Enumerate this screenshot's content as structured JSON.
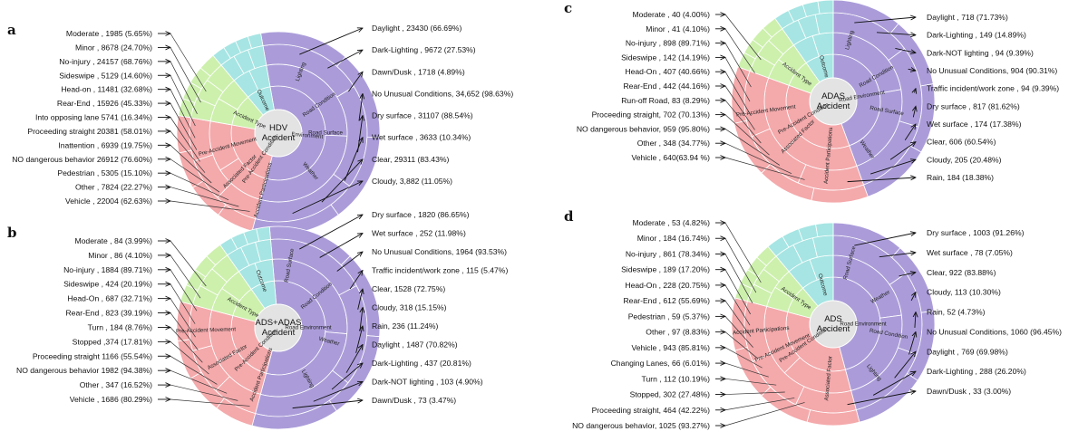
{
  "colors": {
    "environment": "#ab9cd9",
    "outcome": "#a6e5e3",
    "accident_type": "#cdf0ad",
    "factor": "#f4a9ab",
    "center": "#e3e3e3",
    "line": "#111111"
  },
  "panels": [
    {
      "letter": "a",
      "center": [
        "HDV",
        "Accident"
      ],
      "sectors": [
        {
          "key": "environment",
          "a1": -10,
          "a2": 195,
          "rings": [
            "",
            "",
            "",
            ""
          ]
        },
        {
          "key": "factor",
          "a1": 195,
          "a2": 280,
          "rings": [
            "",
            "",
            "",
            ""
          ]
        },
        {
          "key": "accident_type",
          "a1": 280,
          "a2": 320,
          "rings": [
            "",
            "",
            "",
            ""
          ]
        },
        {
          "key": "outcome",
          "a1": 320,
          "a2": 350,
          "rings": [
            "",
            "",
            "",
            ""
          ]
        }
      ],
      "ring_labels": [
        {
          "text": "Lighting",
          "a": 20,
          "r": 72
        },
        {
          "text": "Road Condition",
          "a": 55,
          "r": 55
        },
        {
          "text": "Road Surface",
          "a": 90,
          "r": 52
        },
        {
          "text": "Environment",
          "a": 95,
          "r": 32
        },
        {
          "text": "Weather",
          "a": 140,
          "r": 55
        },
        {
          "text": "Accident Participations",
          "a": 195,
          "r": 65
        },
        {
          "text": "Associated Factor",
          "a": 225,
          "r": 60
        },
        {
          "text": "Pre-Accident Movement",
          "a": 255,
          "r": 58
        },
        {
          "text": "Pre-Accident Condition",
          "a": 215,
          "r": 35
        },
        {
          "text": "Accident Type",
          "a": 295,
          "r": 35
        },
        {
          "text": "Outcome",
          "a": 335,
          "r": 40
        }
      ],
      "left": [
        "Moderate , 1985 (5.65%)",
        "Minor , 8678 (24.70%)",
        "No-injury , 24157 (68.76%)",
        "Sideswipe , 5129 (14.60%)",
        "Head-on , 11481 (32.68%)",
        "Rear-End , 15926 (45.33%)",
        "Into opposing lane 5741 (16.34%)",
        "Proceeding straight 20381 (58.01%)",
        "Inattention , 6939 (19.75%)",
        "NO dangerous behavior 26912 (76.60%)",
        "Pedestrian , 5305 (15.10%)",
        "Other , 7824 (22.27%)",
        "Vehicle , 22004 (62.63%)"
      ],
      "right": [
        "Daylight , 23430 (66.69%)",
        "Dark-Lighting , 9672 (27.53%)",
        "Dawn/Dusk , 1718 (4.89%)",
        "No Unusual Conditions, 34,652 (98.63%)",
        "Dry surface , 31107 (88.54%)",
        "Wet surface , 3633 (10.34%)",
        "Clear, 29311 (83.43%)",
        "Cloudy, 3,882 (11.05%)"
      ]
    },
    {
      "letter": "b",
      "center": [
        "ADS+ADAS",
        "Accident"
      ],
      "sectors": [
        {
          "key": "environment",
          "a1": -5,
          "a2": 195,
          "rings": [
            "",
            "",
            "",
            ""
          ]
        },
        {
          "key": "factor",
          "a1": 195,
          "a2": 285,
          "rings": [
            "",
            "",
            "",
            ""
          ]
        },
        {
          "key": "accident_type",
          "a1": 285,
          "a2": 325,
          "rings": [
            "",
            "",
            "",
            ""
          ]
        },
        {
          "key": "outcome",
          "a1": 325,
          "a2": 355,
          "rings": [
            "",
            "",
            "",
            ""
          ]
        }
      ],
      "ring_labels": [
        {
          "text": "Road Surface",
          "a": 10,
          "r": 70
        },
        {
          "text": "Road Condition",
          "a": 50,
          "r": 55
        },
        {
          "text": "Road Environment",
          "a": 90,
          "r": 33
        },
        {
          "text": "Weather",
          "a": 105,
          "r": 58
        },
        {
          "text": "Lighting",
          "a": 150,
          "r": 65
        },
        {
          "text": "Accident Participations",
          "a": 200,
          "r": 55
        },
        {
          "text": "Associated Factor",
          "a": 240,
          "r": 65
        },
        {
          "text": "Pre-Accident Movement",
          "a": 268,
          "r": 80
        },
        {
          "text": "Pre-Accident Condition",
          "a": 225,
          "r": 35
        },
        {
          "text": "Accident Type",
          "a": 300,
          "r": 45
        },
        {
          "text": "Outcome",
          "a": 340,
          "r": 55
        }
      ],
      "left": [
        "Moderate , 84 (3.99%)",
        "Minor , 86 (4.10%)",
        "No-injury , 1884 (89.71%)",
        "Sideswipe , 424 (20.19%)",
        "Head-On , 687 (32.71%)",
        "Rear-End , 823 (39.19%)",
        "Turn , 184 (8.76%)",
        "Stopped ,374 (17.81%)",
        "Proceeding straight 1166 (55.54%)",
        "NO dangerous behavior 1982 (94.38%)",
        "Other , 347 (16.52%)",
        "Vehicle , 1686 (80.29%)"
      ],
      "right": [
        "Dry surface , 1820 (86.65%)",
        "Wet surface , 252 (11.98%)",
        "No Unusual Conditions, 1964 (93.53%)",
        "Traffic incident/work zone , 115 (5.47%)",
        "Clear, 1528 (72.75%)",
        "Cloudy, 318 (15.15%)",
        "Rain, 236 (11.24%)",
        "Daylight , 1487 (70.82%)",
        "Dark-Lighting , 437 (20.81%)",
        "Dark-NOT lighting , 103 (4.90%)",
        "Dawn/Dusk , 73 (3.47%)"
      ]
    },
    {
      "letter": "c",
      "center": [
        "ADAS",
        "Accident"
      ],
      "sectors": [
        {
          "key": "environment",
          "a1": 0,
          "a2": 160,
          "rings": [
            "",
            "",
            "",
            ""
          ]
        },
        {
          "key": "factor",
          "a1": 160,
          "a2": 290,
          "rings": [
            "",
            "",
            "",
            ""
          ]
        },
        {
          "key": "accident_type",
          "a1": 290,
          "a2": 325,
          "rings": [
            "",
            "",
            "",
            ""
          ]
        },
        {
          "key": "outcome",
          "a1": 325,
          "a2": 360,
          "rings": [
            "",
            "",
            "",
            ""
          ]
        }
      ],
      "ring_labels": [
        {
          "text": "Lighting",
          "a": 15,
          "r": 70
        },
        {
          "text": "Road Condition",
          "a": 60,
          "r": 55
        },
        {
          "text": "Road Environment",
          "a": 80,
          "r": 32
        },
        {
          "text": "Road Surface",
          "a": 100,
          "r": 60
        },
        {
          "text": "Weather",
          "a": 145,
          "r": 65
        },
        {
          "text": "Accident Participations",
          "a": 185,
          "r": 60
        },
        {
          "text": "Associated Factor",
          "a": 225,
          "r": 55
        },
        {
          "text": "Pre-Accident Movement",
          "a": 262,
          "r": 75
        },
        {
          "text": "Pre-Accident Condition",
          "a": 240,
          "r": 38
        },
        {
          "text": "Accident Type",
          "a": 307,
          "r": 50
        },
        {
          "text": "Outcome",
          "a": 345,
          "r": 40
        }
      ],
      "left": [
        "Moderate , 40 (4.00%)",
        "Minor , 41 (4.10%)",
        "No-injury , 898 (89.71%)",
        "Sideswipe , 142 (14.19%)",
        "Head-On , 407 (40.66%)",
        "Rear-End , 442 (44.16%)",
        "Run-off Road, 83 (8.29%)",
        "Proceeding straight, 702 (70.13%)",
        "NO dangerous behavior, 959 (95.80%)",
        "Other , 348 (34.77%)",
        "Vehicle , 640(63.94 %)"
      ],
      "right": [
        "Daylight , 718 (71.73%)",
        "Dark-Lighting , 149 (14.89%)",
        "Dark-NOT lighting , 94 (9.39%)",
        "No Unusual Conditions, 904 (90.31%)",
        "Traffic incident/work zone , 94 (9.39%)",
        "Dry surface , 817 (81.62%)",
        "Wet surface , 174 (17.38%)",
        "Clear, 606 (60.54%)",
        "Cloudy, 205 (20.48%)",
        "Rain, 184 (18.38%)"
      ]
    },
    {
      "letter": "d",
      "center": [
        "ADS",
        "Accident"
      ],
      "sectors": [
        {
          "key": "environment",
          "a1": 0,
          "a2": 165,
          "rings": [
            "",
            "",
            "",
            ""
          ]
        },
        {
          "key": "factor",
          "a1": 165,
          "a2": 285,
          "rings": [
            "",
            "",
            "",
            ""
          ]
        },
        {
          "key": "accident_type",
          "a1": 285,
          "a2": 320,
          "rings": [
            "",
            "",
            "",
            ""
          ]
        },
        {
          "key": "outcome",
          "a1": 320,
          "a2": 360,
          "rings": [
            "",
            "",
            "",
            ""
          ]
        }
      ],
      "ring_labels": [
        {
          "text": "Road Surface",
          "a": 15,
          "r": 70
        },
        {
          "text": "Weather",
          "a": 60,
          "r": 60
        },
        {
          "text": "Road Environment",
          "a": 90,
          "r": 33
        },
        {
          "text": "Road Condition",
          "a": 100,
          "r": 62
        },
        {
          "text": "Lighting",
          "a": 140,
          "r": 70
        },
        {
          "text": "Associated Factor",
          "a": 185,
          "r": 60
        },
        {
          "text": "Pre-Accident Condition",
          "a": 235,
          "r": 40
        },
        {
          "text": "Pre-Accident Movement",
          "a": 245,
          "r": 62
        },
        {
          "text": "Accident Participations",
          "a": 265,
          "r": 80
        },
        {
          "text": "Accident Type",
          "a": 305,
          "r": 50
        },
        {
          "text": "Outcome",
          "a": 345,
          "r": 45
        }
      ],
      "left": [
        "Moderate , 53 (4.82%)",
        "Minor , 184 (16.74%)",
        "No-injury , 861 (78.34%)",
        "Sideswipe , 189 (17.20%)",
        "Head-On , 228 (20.75%)",
        "Rear-End , 612 (55.69%)",
        "Pedestrian , 59 (5.37%)",
        "Other , 97 (8.83%)",
        "Vehicle , 943 (85.81%)",
        "Changing Lanes, 66 (6.01%)",
        "Turn , 112 (10.19%)",
        "Stopped, 302 (27.48%)",
        "Proceeding straight, 464 (42.22%)",
        "NO dangerous behavior, 1025 (93.27%)"
      ],
      "right": [
        "Dry surface , 1003 (91.26%)",
        "Wet surface , 78 (7.05%)",
        "Clear, 922 (83.88%)",
        "Cloudy, 113 (10.30%)",
        "Rain, 52 (4.73%)",
        "No Unusual Conditions, 1060 (96.45%)",
        "Daylight , 769 (69.98%)",
        "Dark-Lighting , 288 (26.20%)",
        "Dawn/Dusk , 33 (3.00%)"
      ]
    }
  ]
}
